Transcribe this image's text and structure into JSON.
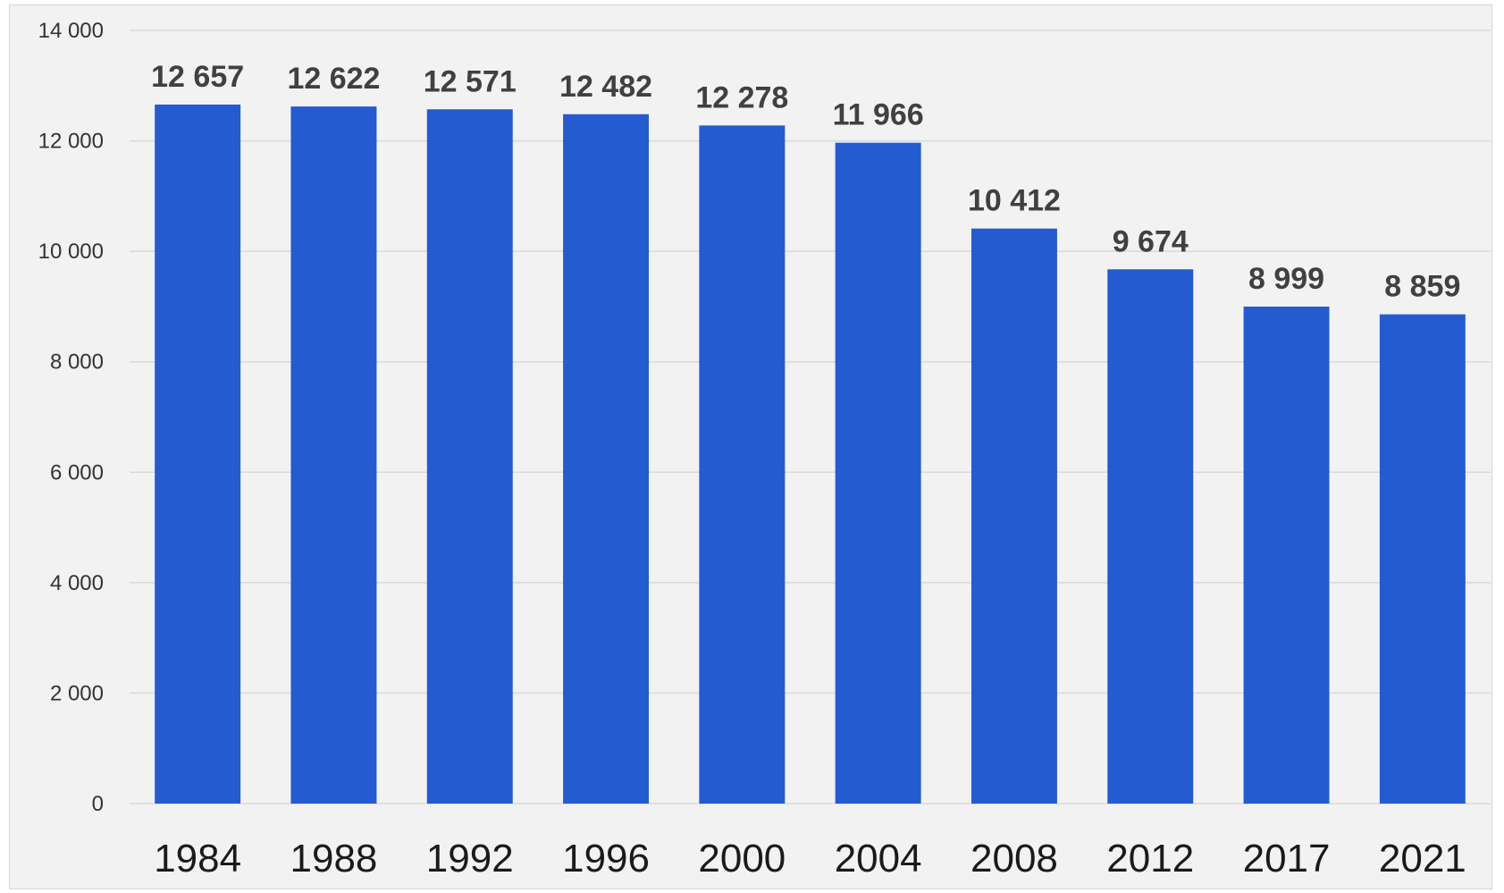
{
  "chart_data": {
    "type": "bar",
    "title": "",
    "xlabel": "",
    "ylabel": "",
    "categories": [
      "1984",
      "1988",
      "1992",
      "1996",
      "2000",
      "2004",
      "2008",
      "2012",
      "2017",
      "2021"
    ],
    "values": [
      12657,
      12622,
      12571,
      12482,
      12278,
      11966,
      10412,
      9674,
      8999,
      8859
    ],
    "data_labels": [
      "12 657",
      "12 622",
      "12 571",
      "12 482",
      "12 278",
      "11 966",
      "10 412",
      "9 674",
      "8 999",
      "8 859"
    ],
    "ylim": [
      0,
      14000
    ],
    "yticks": [
      0,
      2000,
      4000,
      6000,
      8000,
      10000,
      12000,
      14000
    ],
    "ytick_labels": [
      "0",
      "2 000",
      "4 000",
      "6 000",
      "8 000",
      "10 000",
      "12 000",
      "14 000"
    ],
    "grid": true,
    "legend": "none",
    "colors": {
      "bar": "#245bd1",
      "grid": "#d9d9d9",
      "background": "#f2f2f2"
    }
  }
}
